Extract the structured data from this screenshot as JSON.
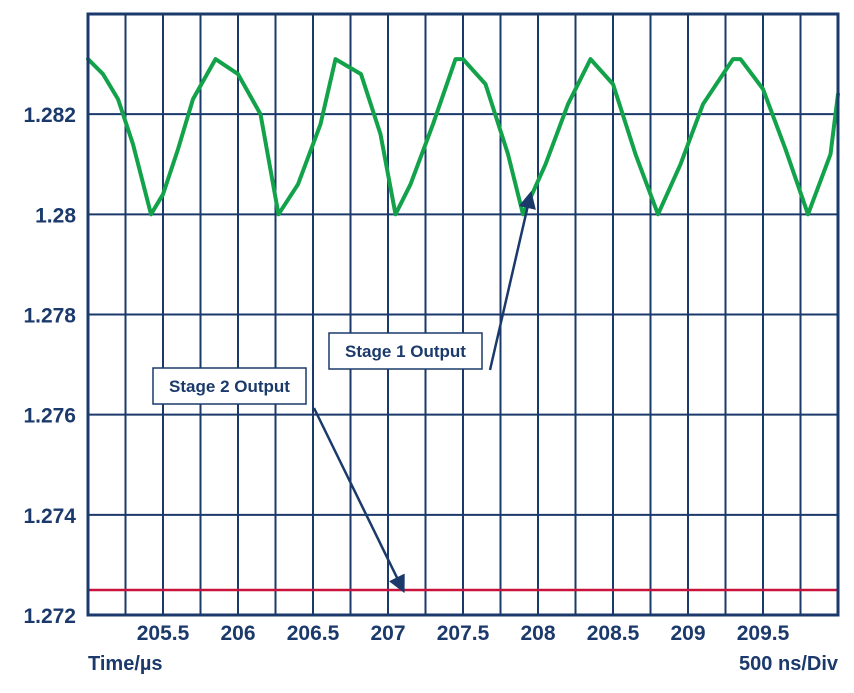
{
  "chart_data": {
    "type": "line",
    "title": "",
    "xlabel": "Time/µs",
    "scale_label": "500 ns/Div",
    "ylabel": "",
    "xlim": [
      205.0,
      210.0
    ],
    "ylim": [
      1.272,
      1.284
    ],
    "x_ticks": [
      "205.5",
      "206",
      "206.5",
      "207",
      "207.5",
      "208",
      "208.5",
      "209",
      "209.5"
    ],
    "x_tick_values": [
      205.5,
      206,
      206.5,
      207,
      207.5,
      208,
      208.5,
      209,
      209.5
    ],
    "y_ticks": [
      "1.282",
      "1.28",
      "1.278",
      "1.276",
      "1.274",
      "1.272"
    ],
    "y_tick_values": [
      1.282,
      1.28,
      1.278,
      1.276,
      1.274,
      1.272
    ],
    "grid": true,
    "series": [
      {
        "name": "Stage 1 Output",
        "color": "#12a24a",
        "x": [
          205.0,
          205.1,
          205.2,
          205.3,
          205.42,
          205.5,
          205.6,
          205.7,
          205.85,
          206.0,
          206.15,
          206.27,
          206.4,
          206.55,
          206.65,
          206.82,
          206.95,
          207.05,
          207.15,
          207.3,
          207.45,
          207.5,
          207.65,
          207.8,
          207.9,
          208.05,
          208.2,
          208.35,
          208.5,
          208.65,
          208.8,
          208.95,
          209.1,
          209.3,
          209.35,
          209.5,
          209.65,
          209.8,
          209.95,
          210.0
        ],
        "y": [
          1.2831,
          1.2828,
          1.2823,
          1.2814,
          1.28,
          1.2804,
          1.2813,
          1.2823,
          1.2831,
          1.2828,
          1.282,
          1.28,
          1.2806,
          1.2818,
          1.2831,
          1.2828,
          1.2816,
          1.28,
          1.2806,
          1.2818,
          1.2831,
          1.2831,
          1.2826,
          1.2812,
          1.28,
          1.281,
          1.2822,
          1.2831,
          1.2826,
          1.2812,
          1.28,
          1.281,
          1.2822,
          1.2831,
          1.2831,
          1.2825,
          1.2813,
          1.28,
          1.2812,
          1.2824
        ]
      },
      {
        "name": "Stage 2 Output",
        "color": "#c8143c",
        "x": [
          205.0,
          210.0
        ],
        "y": [
          1.2725,
          1.2725
        ]
      }
    ],
    "annotations": [
      {
        "text": "Stage 1 Output",
        "target_x": 207.95,
        "target_y": 1.2804
      },
      {
        "text": "Stage 2 Output",
        "target_x": 207.1,
        "target_y": 1.2725
      }
    ],
    "colors": {
      "grid": "#1b3a6b",
      "text": "#1b3a6b",
      "arrow": "#1b3a6b"
    }
  }
}
